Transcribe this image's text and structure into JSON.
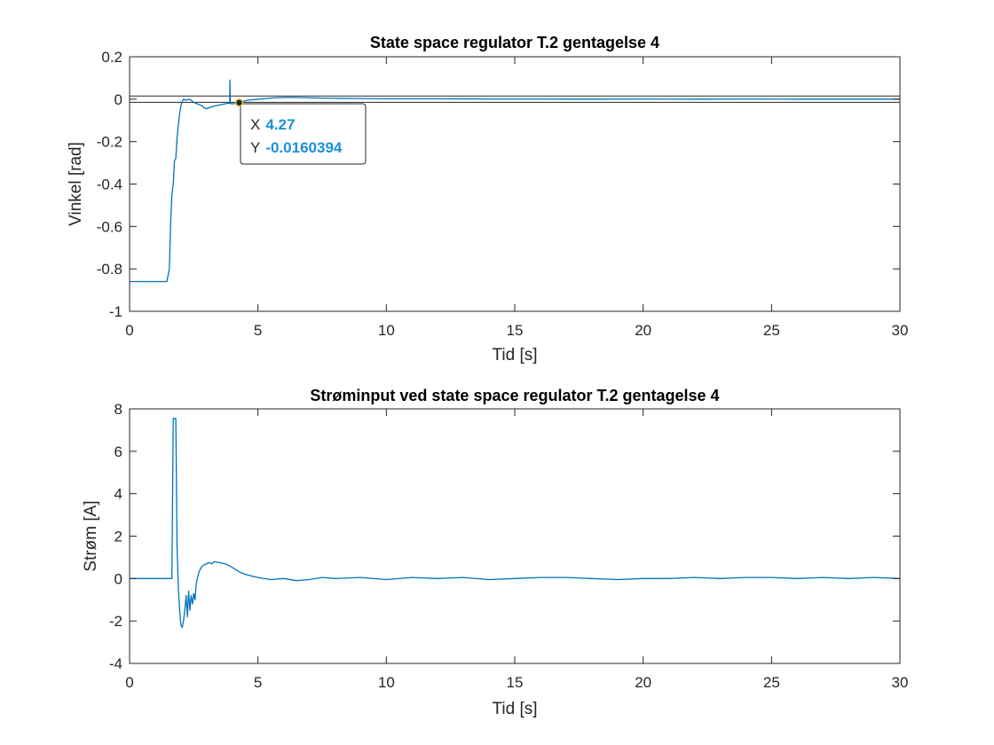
{
  "chart_data": [
    {
      "type": "line",
      "title": "State space regulator T.2 gentagelse 4",
      "xlabel": "Tid [s]",
      "ylabel": "Vinkel [rad]",
      "xlim": [
        0,
        30
      ],
      "ylim": [
        -1,
        0.2
      ],
      "xticks": [
        "0",
        "5",
        "10",
        "15",
        "20",
        "25",
        "30"
      ],
      "yticks": [
        "-1",
        "-0.8",
        "-0.6",
        "-0.4",
        "-0.2",
        "0",
        "0.2"
      ],
      "grid": false,
      "reference_lines": [
        0.015,
        -0.015
      ],
      "series": [
        {
          "color": "#0072BD",
          "x": [
            0,
            1.0,
            1.4,
            1.45,
            1.55,
            1.6,
            1.65,
            1.7,
            1.75,
            1.8,
            1.85,
            1.9,
            1.95,
            2.0,
            2.05,
            2.1,
            2.2,
            2.3,
            2.4,
            2.5,
            2.6,
            2.7,
            2.8,
            2.9,
            3.0,
            3.1,
            3.2,
            3.4,
            3.6,
            3.8,
            3.9,
            3.91,
            3.92,
            3.93,
            4.0,
            4.1,
            4.2,
            4.27,
            4.4,
            4.6,
            5.0,
            5.5,
            6.0,
            6.5,
            7.0,
            8.0,
            9.0,
            10.0,
            12.0,
            14.0,
            16.0,
            18.0,
            20.0,
            22.0,
            24.0,
            26.0,
            28.0,
            30.0
          ],
          "y": [
            -0.86,
            -0.86,
            -0.86,
            -0.86,
            -0.8,
            -0.58,
            -0.45,
            -0.4,
            -0.29,
            -0.28,
            -0.18,
            -0.12,
            -0.07,
            -0.03,
            -0.01,
            0.0,
            -0.005,
            0.0,
            -0.005,
            -0.015,
            -0.02,
            -0.025,
            -0.03,
            -0.04,
            -0.045,
            -0.04,
            -0.035,
            -0.03,
            -0.025,
            -0.02,
            -0.02,
            0.09,
            0.0,
            -0.02,
            -0.022,
            -0.02,
            -0.018,
            -0.016,
            -0.01,
            -0.005,
            0.0,
            0.005,
            0.008,
            0.008,
            0.006,
            0.004,
            0.003,
            0.002,
            0.002,
            0.001,
            0.001,
            0.0,
            0.001,
            0.0,
            0.001,
            0.0,
            0.0,
            0.0
          ]
        }
      ],
      "datatip": {
        "x": "4.27",
        "y": "-0.0160394",
        "x_key": "X",
        "y_key": "Y"
      }
    },
    {
      "type": "line",
      "title": "Strøminput ved state space regulator T.2 gentagelse 4",
      "xlabel": "Tid [s]",
      "ylabel": "Strøm [A]",
      "xlim": [
        0,
        30
      ],
      "ylim": [
        -4,
        8
      ],
      "xticks": [
        "0",
        "5",
        "10",
        "15",
        "20",
        "25",
        "30"
      ],
      "yticks": [
        "-4",
        "-2",
        "0",
        "2",
        "4",
        "6",
        "8"
      ],
      "grid": false,
      "series": [
        {
          "color": "#0072BD",
          "x": [
            0,
            1.0,
            1.6,
            1.65,
            1.7,
            1.75,
            1.8,
            1.82,
            1.85,
            1.9,
            1.95,
            2.0,
            2.05,
            2.1,
            2.15,
            2.2,
            2.25,
            2.3,
            2.35,
            2.4,
            2.45,
            2.5,
            2.55,
            2.6,
            2.7,
            2.8,
            2.9,
            3.0,
            3.1,
            3.2,
            3.3,
            3.5,
            3.7,
            3.9,
            4.1,
            4.3,
            4.5,
            4.8,
            5.0,
            5.5,
            6.0,
            6.5,
            7.0,
            7.5,
            8.0,
            9.0,
            10.0,
            11.0,
            12.0,
            13.0,
            14.0,
            15.0,
            16.0,
            17.0,
            18.0,
            19.0,
            20.0,
            21.0,
            22.0,
            23.0,
            24.0,
            25.0,
            26.0,
            27.0,
            28.0,
            29.0,
            30.0
          ],
          "y": [
            0,
            0,
            0,
            0,
            7.55,
            7.55,
            7.55,
            5.0,
            1.5,
            -0.5,
            -1.5,
            -2.2,
            -2.3,
            -2.0,
            -1.5,
            -0.8,
            -1.8,
            -0.6,
            -1.5,
            -0.8,
            -1.2,
            -0.7,
            -1.0,
            -0.2,
            0.3,
            0.55,
            0.65,
            0.7,
            0.75,
            0.7,
            0.8,
            0.75,
            0.7,
            0.6,
            0.45,
            0.3,
            0.2,
            0.1,
            0.05,
            -0.05,
            0.0,
            -0.1,
            -0.05,
            0.05,
            0.0,
            0.05,
            -0.05,
            0.05,
            0.0,
            0.05,
            -0.05,
            0.0,
            0.05,
            0.05,
            0.0,
            -0.05,
            0.0,
            0.0,
            0.05,
            0.0,
            0.05,
            0.05,
            0.0,
            0.05,
            0.0,
            0.05,
            0.0
          ]
        }
      ]
    }
  ]
}
